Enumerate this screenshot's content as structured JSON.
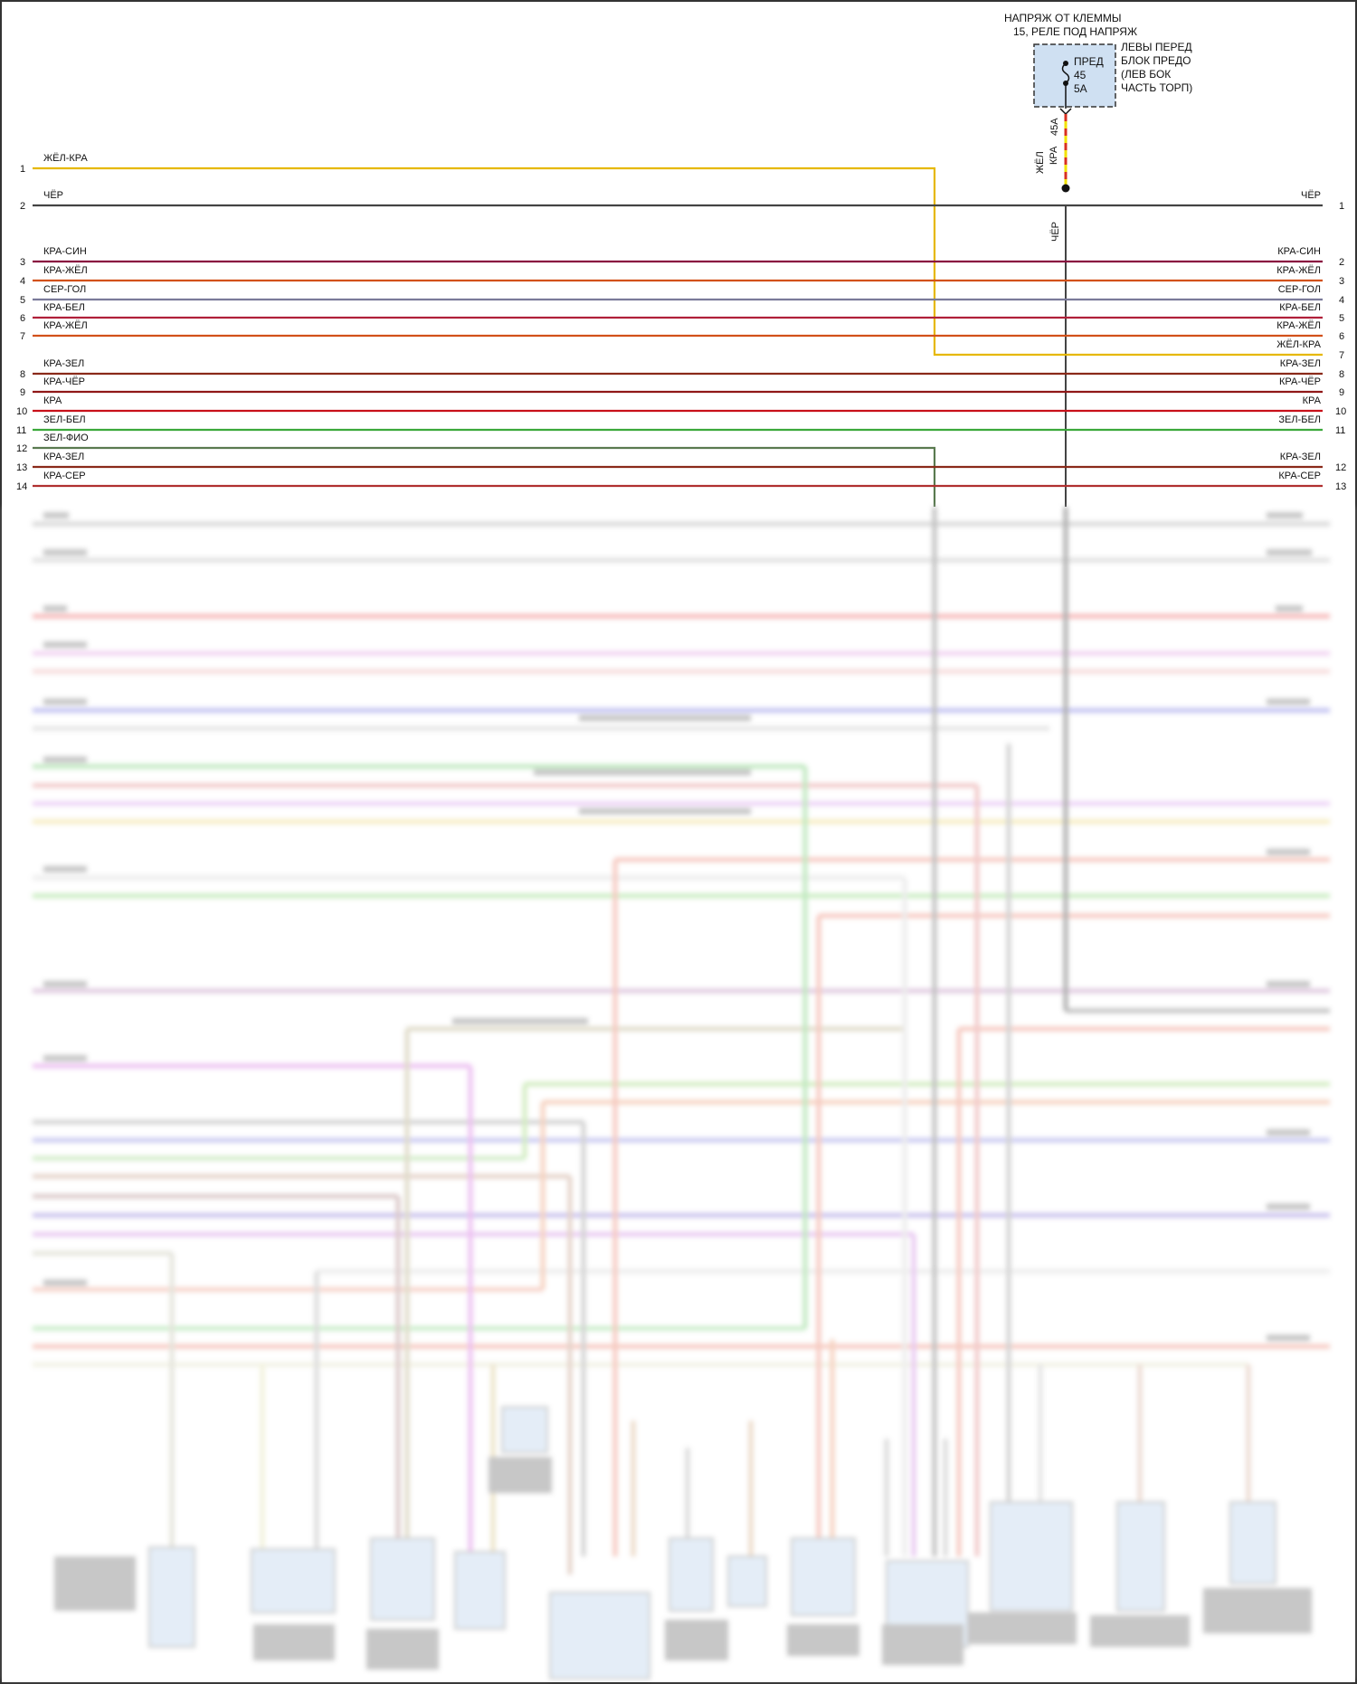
{
  "fuse_block": {
    "title_line1": "НАПРЯЖ ОТ КЛЕММЫ",
    "title_line2": "15, РЕЛЕ ПОД НАПРЯЖ",
    "fuse_label": "ПРЕД",
    "fuse_number": "45",
    "fuse_rating": "5A",
    "location": [
      "ЛЕВЫ ПЕРЕД",
      "БЛОК ПРЕДО",
      "(ЛЕВ БОК",
      "ЧАСТЬ ТОРП)"
    ],
    "pin_label": "45A",
    "down_wire_labels": [
      "ЖЁЛ",
      "КРА"
    ],
    "ground_wire_label": "ЧЁР"
  },
  "colors": {
    "yellow": "#e6b800",
    "black": "#333333",
    "red": "#c8101a",
    "red_blue": "#8a1040",
    "red_yellow": "#d2511a",
    "grey_blue": "#7a7a9a",
    "red_white": "#b0203a",
    "red_green": "#8a2a1a",
    "green_white": "#3aa83a",
    "green_violet": "#5a7a50",
    "red_black": "#901818",
    "red_grey": "#b03030",
    "fuse_fill": "#cfe0f2"
  },
  "wires_left": [
    {
      "num": "1",
      "label": "ЖЁЛ-КРА",
      "color": "#e6b800"
    },
    {
      "num": "2",
      "label": "ЧЁР",
      "color": "#444444"
    },
    {
      "num": "3",
      "label": "КРА-СИН",
      "color": "#8a1040"
    },
    {
      "num": "4",
      "label": "КРА-ЖЁЛ",
      "color": "#d2511a"
    },
    {
      "num": "5",
      "label": "СЕР-ГОЛ",
      "color": "#7a7a9a"
    },
    {
      "num": "6",
      "label": "КРА-БЕЛ",
      "color": "#b0203a"
    },
    {
      "num": "7",
      "label": "КРА-ЖЁЛ",
      "color": "#d2511a"
    },
    {
      "num": "8",
      "label": "КРА-ЗЕЛ",
      "color": "#8a2a1a"
    },
    {
      "num": "9",
      "label": "КРА-ЧЁР",
      "color": "#901818"
    },
    {
      "num": "10",
      "label": "КРА",
      "color": "#c8101a"
    },
    {
      "num": "11",
      "label": "ЗЕЛ-БЕЛ",
      "color": "#3aa83a"
    },
    {
      "num": "12",
      "label": "ЗЕЛ-ФИО",
      "color": "#5a7a50"
    },
    {
      "num": "13",
      "label": "КРА-ЗЕЛ",
      "color": "#8a2a1a"
    },
    {
      "num": "14",
      "label": "КРА-СЕР",
      "color": "#b03030"
    }
  ],
  "wires_right": [
    {
      "num": "1",
      "label": "ЧЁР"
    },
    {
      "num": "2",
      "label": "КРА-СИН"
    },
    {
      "num": "3",
      "label": "КРА-ЖЁЛ"
    },
    {
      "num": "4",
      "label": "СЕР-ГОЛ"
    },
    {
      "num": "5",
      "label": "КРА-ЖЁЛ"
    },
    {
      "num": "6",
      "label": "ЖЁЛ-КРА"
    },
    {
      "num": "7",
      "label": ""
    },
    {
      "num": "8",
      "label": "КРА-ЗЕЛ"
    },
    {
      "num": "9",
      "label": "КРА-ЧЁР"
    },
    {
      "num": "10",
      "label": "КРА"
    },
    {
      "num": "11",
      "label": "ЗЕЛ-БЕЛ"
    },
    {
      "num": "12",
      "label": "КРА-ЗЕЛ"
    },
    {
      "num": "13",
      "label": "КРА-СЕР"
    }
  ]
}
